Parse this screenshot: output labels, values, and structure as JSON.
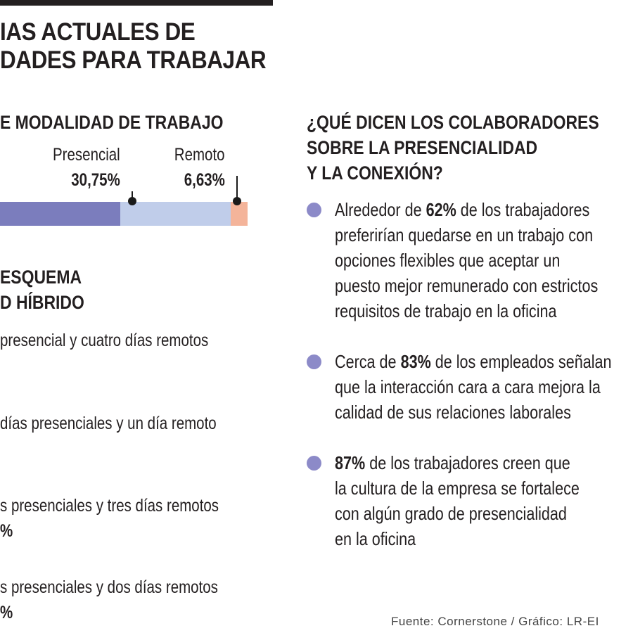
{
  "title": {
    "line1": "IAS ACTUALES DE",
    "line2": "DADES PARA TRABAJAR"
  },
  "modalidad": {
    "heading": "E MODALIDAD DE TRABAJO",
    "colors": {
      "hibrido": "#7b7dbd",
      "presencial": "#c0cdea",
      "remoto": "#f4b49a"
    }
  },
  "chart_data": {
    "type": "bar",
    "orientation": "horizontal-stacked",
    "series": [
      {
        "name": "Presencial",
        "value_label": "30,75%",
        "value": 30.75
      },
      {
        "name": "Remoto",
        "value_label": "6,63%",
        "value": 6.63
      }
    ]
  },
  "esquema": {
    "heading_line1": "ESQUEMA",
    "heading_line2": "D HÍBRIDO",
    "items": [
      {
        "text": "presencial y cuatro días remotos",
        "pct": ""
      },
      {
        "text": "días presenciales y un día remoto",
        "pct": ""
      },
      {
        "text": "s presenciales y tres días remotos",
        "pct": "%"
      },
      {
        "text": "s presenciales y dos días remotos",
        "pct": "%"
      }
    ]
  },
  "colaboradores": {
    "heading_line1": "¿QUÉ DICEN LOS COLABORADORES",
    "heading_line2": "SOBRE LA PRESENCIALIDAD",
    "heading_line3": "Y LA CONEXIÓN?",
    "bullet_color": "#8c8ac8",
    "bullets": [
      {
        "pre": "Alrededor de ",
        "strong": "62%",
        "lines": [
          " de los  trabajadores",
          "preferirían quedarse en un trabajo con",
          "opciones flexibles que aceptar un",
          "puesto mejor remunerado con estrictos",
          "requisitos de trabajo en la oficina"
        ]
      },
      {
        "pre": "Cerca de ",
        "strong": "83%",
        "lines": [
          " de los empleados señalan",
          "que la interacción cara a cara mejora la",
          "calidad de sus relaciones laborales"
        ]
      },
      {
        "pre": "",
        "strong": "87%",
        "lines": [
          " de los  trabajadores creen que",
          "la cultura de la empresa se fortalece",
          "con algún grado de presencialidad",
          "en la oficina"
        ]
      }
    ]
  },
  "source": "Fuente: Cornerstone / Gráfico: LR-EI"
}
